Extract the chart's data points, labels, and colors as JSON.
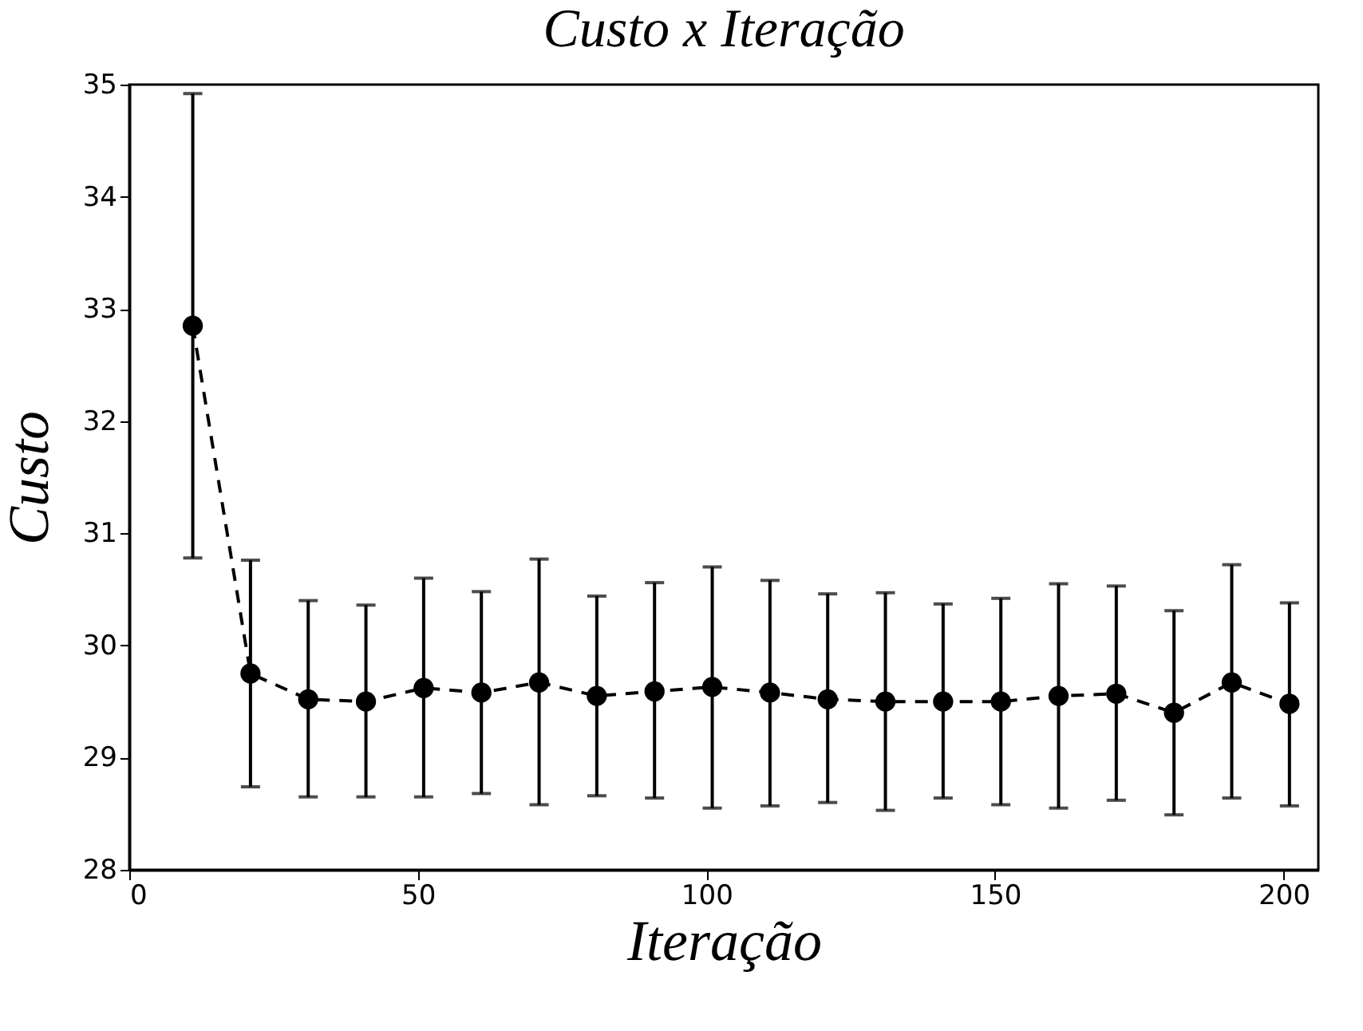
{
  "chart_data": {
    "type": "line",
    "title": "Custo x Iteração",
    "xlabel": "Iteração",
    "ylabel": "Custo",
    "x": [
      11,
      21,
      31,
      41,
      51,
      61,
      71,
      81,
      91,
      101,
      111,
      121,
      131,
      141,
      151,
      161,
      171,
      181,
      191,
      201
    ],
    "series": [
      {
        "color": "#000000",
        "values": [
          32.85,
          29.75,
          29.52,
          29.5,
          29.62,
          29.58,
          29.67,
          29.55,
          29.59,
          29.63,
          29.58,
          29.52,
          29.5,
          29.5,
          29.5,
          29.55,
          29.57,
          29.4,
          29.67,
          29.48
        ],
        "errors": [
          [
            30.78,
            34.92
          ],
          [
            28.74,
            30.76
          ],
          [
            28.65,
            30.4
          ],
          [
            28.65,
            30.36
          ],
          [
            28.65,
            30.6
          ],
          [
            28.68,
            30.48
          ],
          [
            28.58,
            30.77
          ],
          [
            28.66,
            30.44
          ],
          [
            28.64,
            30.56
          ],
          [
            28.55,
            30.7
          ],
          [
            28.57,
            30.58
          ],
          [
            28.6,
            30.46
          ],
          [
            28.53,
            30.47
          ],
          [
            28.64,
            30.37
          ],
          [
            28.58,
            30.42
          ],
          [
            28.55,
            30.55
          ],
          [
            28.62,
            30.53
          ],
          [
            28.49,
            30.31
          ],
          [
            28.64,
            30.72
          ],
          [
            28.57,
            30.38
          ]
        ]
      }
    ],
    "xlim": [
      0,
      206
    ],
    "xticks": [
      0,
      50,
      100,
      150,
      200
    ],
    "ylim": [
      28,
      35
    ],
    "yticks": [
      28,
      29,
      30,
      31,
      32,
      33,
      34,
      35
    ],
    "marker": "circle",
    "line_style": "dashed",
    "grid": false
  }
}
